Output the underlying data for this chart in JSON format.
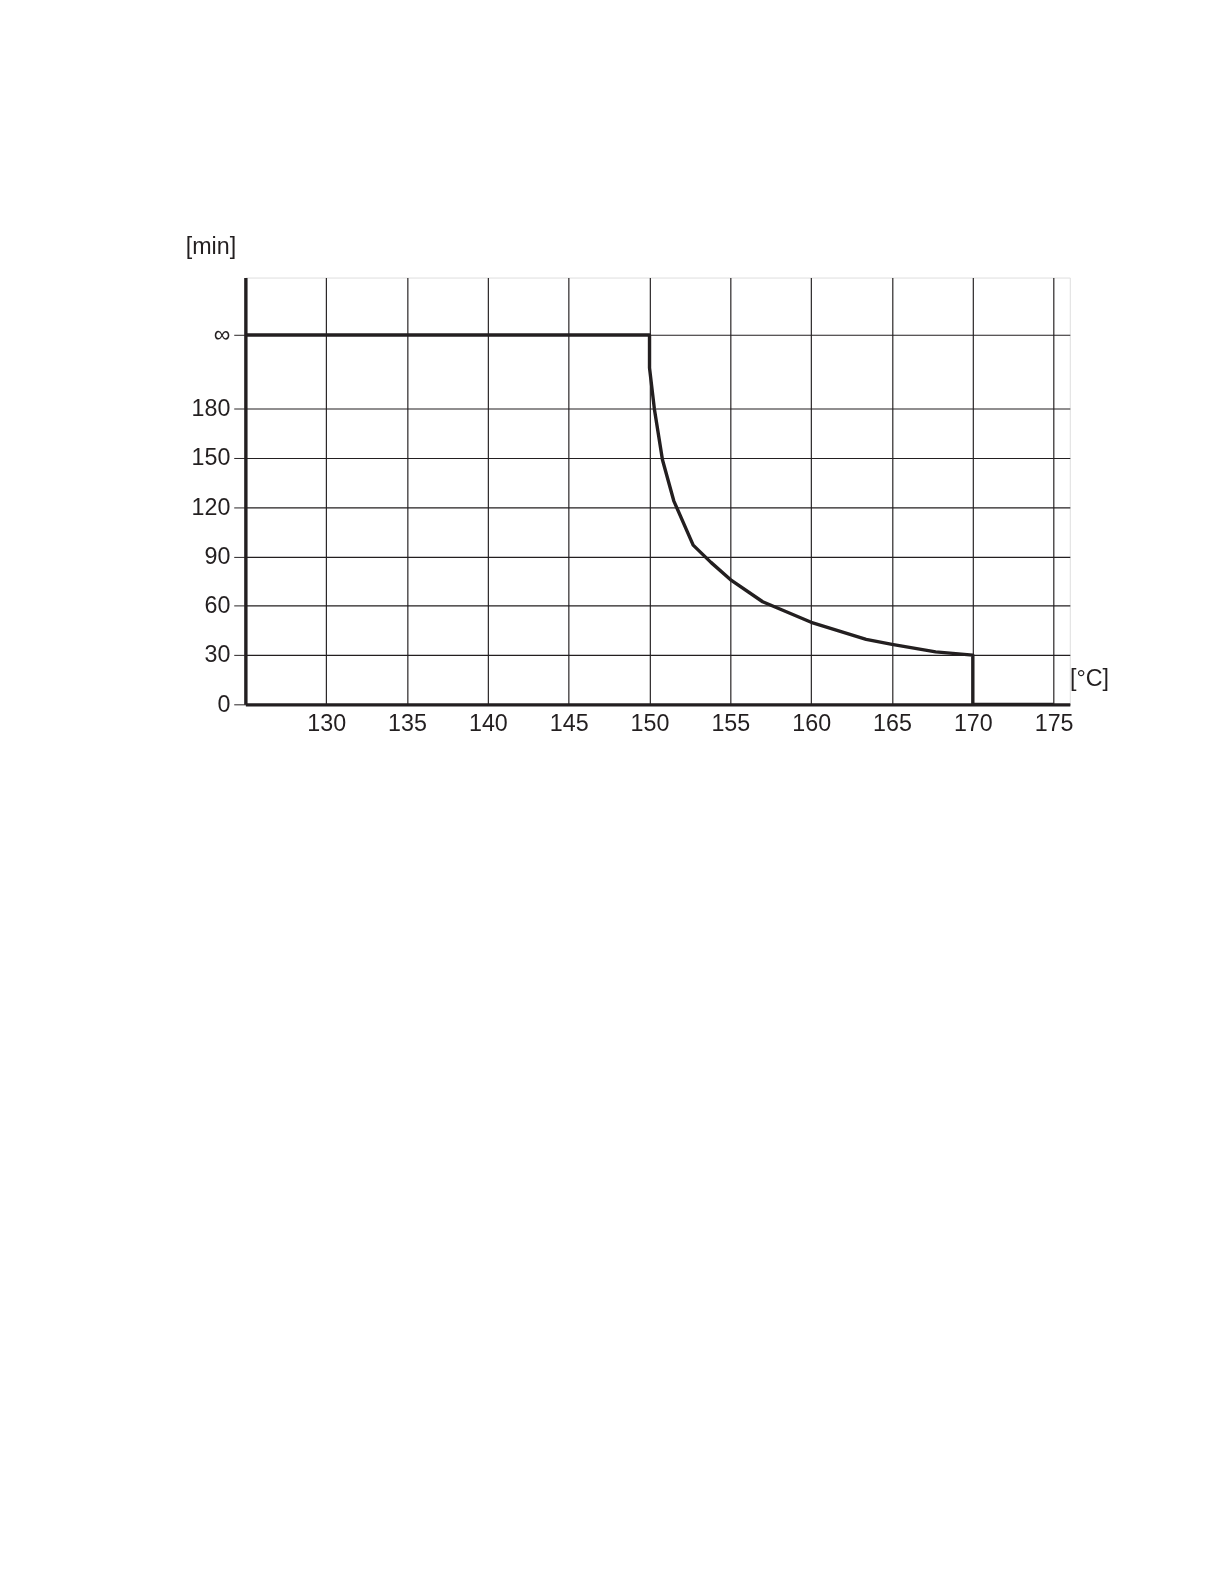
{
  "chart_data": {
    "type": "line",
    "xlabel": "[°C]",
    "ylabel": "[min]",
    "x": [
      125,
      150,
      150,
      150.3,
      150.8,
      151.5,
      152.7,
      153.8,
      155,
      157,
      160,
      163.4,
      165,
      167.7,
      170,
      170,
      175
    ],
    "series": [
      {
        "color": "#231f20",
        "values": [
          225,
          225,
          205,
          180,
          149,
          124,
          97,
          86.5,
          76,
          62.5,
          50,
          39.6,
          36.5,
          32,
          30,
          0,
          0
        ]
      }
    ],
    "xlim": [
      125,
      176
    ],
    "ylim": [
      0,
      260
    ],
    "xticks": [
      130,
      135,
      140,
      145,
      150,
      155,
      160,
      165,
      170,
      175
    ],
    "yticks": [
      0,
      30,
      60,
      90,
      120,
      150,
      180,
      {
        "value": 225,
        "label": "∞"
      }
    ],
    "grid": true,
    "marker": "none",
    "line_style": "solid"
  }
}
